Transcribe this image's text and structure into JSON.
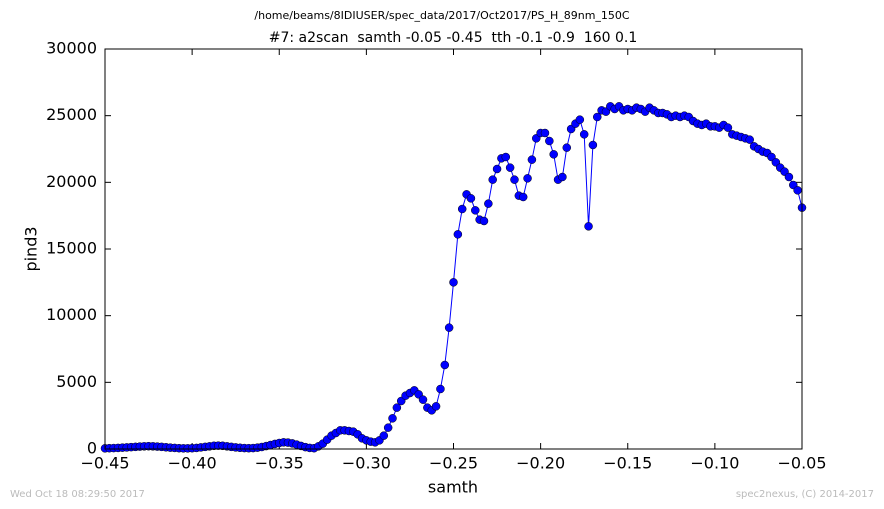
{
  "chart_data": {
    "type": "line",
    "suptitle": "/home/beams/8IDIUSER/spec_data/2017/Oct2017/PS_H_89nm_150C",
    "title": "#7: a2scan  samth -0.05 -0.45  tth -0.1 -0.9  160 0.1",
    "xlabel": "samth",
    "ylabel": "pind3",
    "timestamp": "Wed Oct 18 08:29:50 2017",
    "credit": "spec2nexus, (C) 2014-2017",
    "xlim": [
      -0.45,
      -0.05
    ],
    "xticks": [
      {
        "value": -0.45,
        "label": "−0.45"
      },
      {
        "value": -0.4,
        "label": "−0.40"
      },
      {
        "value": -0.35,
        "label": "−0.35"
      },
      {
        "value": -0.3,
        "label": "−0.30"
      },
      {
        "value": -0.25,
        "label": "−0.25"
      },
      {
        "value": -0.2,
        "label": "−0.20"
      },
      {
        "value": -0.15,
        "label": "−0.15"
      },
      {
        "value": -0.1,
        "label": "−0.10"
      },
      {
        "value": -0.05,
        "label": "−0.05"
      }
    ],
    "ylim": [
      0,
      30000
    ],
    "yticks": [
      0,
      5000,
      10000,
      15000,
      20000,
      25000,
      30000
    ],
    "grid": false,
    "x": [
      -0.45,
      -0.4475,
      -0.445,
      -0.4425,
      -0.44,
      -0.4375,
      -0.435,
      -0.4325,
      -0.43,
      -0.4275,
      -0.425,
      -0.4225,
      -0.42,
      -0.4175,
      -0.415,
      -0.4125,
      -0.41,
      -0.4075,
      -0.405,
      -0.4025,
      -0.4,
      -0.3975,
      -0.395,
      -0.3925,
      -0.39,
      -0.3875,
      -0.385,
      -0.3825,
      -0.38,
      -0.3775,
      -0.375,
      -0.3725,
      -0.37,
      -0.3675,
      -0.365,
      -0.3625,
      -0.36,
      -0.3575,
      -0.355,
      -0.3525,
      -0.35,
      -0.3475,
      -0.345,
      -0.3425,
      -0.34,
      -0.3375,
      -0.335,
      -0.3325,
      -0.33,
      -0.3275,
      -0.325,
      -0.3225,
      -0.32,
      -0.3175,
      -0.315,
      -0.3125,
      -0.31,
      -0.3075,
      -0.305,
      -0.3025,
      -0.3,
      -0.2975,
      -0.295,
      -0.2925,
      -0.29,
      -0.2875,
      -0.285,
      -0.2825,
      -0.28,
      -0.2775,
      -0.275,
      -0.2725,
      -0.27,
      -0.2675,
      -0.265,
      -0.2625,
      -0.26,
      -0.2575,
      -0.255,
      -0.2525,
      -0.25,
      -0.2475,
      -0.245,
      -0.2425,
      -0.24,
      -0.2375,
      -0.235,
      -0.2325,
      -0.23,
      -0.2275,
      -0.225,
      -0.2225,
      -0.22,
      -0.2175,
      -0.215,
      -0.2125,
      -0.21,
      -0.2075,
      -0.205,
      -0.2025,
      -0.2,
      -0.1975,
      -0.195,
      -0.1925,
      -0.19,
      -0.1875,
      -0.185,
      -0.1825,
      -0.18,
      -0.1775,
      -0.175,
      -0.1725,
      -0.17,
      -0.1675,
      -0.165,
      -0.1625,
      -0.16,
      -0.1575,
      -0.155,
      -0.1525,
      -0.15,
      -0.1475,
      -0.145,
      -0.1425,
      -0.14,
      -0.1375,
      -0.135,
      -0.1325,
      -0.13,
      -0.1275,
      -0.125,
      -0.1225,
      -0.12,
      -0.1175,
      -0.115,
      -0.1125,
      -0.11,
      -0.1075,
      -0.105,
      -0.1025,
      -0.1,
      -0.0975,
      -0.095,
      -0.0925,
      -0.09,
      -0.0875,
      -0.085,
      -0.0825,
      -0.08,
      -0.0775,
      -0.075,
      -0.0725,
      -0.07,
      -0.0675,
      -0.065,
      -0.0625,
      -0.06,
      -0.0575,
      -0.055,
      -0.0525,
      -0.05
    ],
    "series": [
      {
        "color": "#0000ff",
        "values": [
          50,
          60,
          70,
          80,
          100,
          120,
          140,
          160,
          180,
          200,
          210,
          200,
          180,
          160,
          130,
          100,
          80,
          60,
          50,
          50,
          60,
          80,
          120,
          160,
          200,
          240,
          250,
          240,
          200,
          160,
          120,
          90,
          70,
          60,
          70,
          100,
          150,
          220,
          300,
          380,
          450,
          500,
          480,
          420,
          330,
          230,
          140,
          80,
          60,
          200,
          400,
          700,
          1000,
          1200,
          1400,
          1400,
          1350,
          1300,
          1100,
          800,
          650,
          550,
          500,
          650,
          1000,
          1600,
          2300,
          3100,
          3600,
          4000,
          4200,
          4400,
          4100,
          3700,
          3100,
          2900,
          3200,
          4500,
          6300,
          9100,
          12500,
          16100,
          18000,
          19100,
          18800,
          17900,
          17200,
          17100,
          18400,
          20200,
          21000,
          21800,
          21900,
          21100,
          20200,
          19000,
          18900,
          20300,
          21700,
          23300,
          23700,
          23700,
          23100,
          22100,
          20200,
          20400,
          22600,
          24000,
          24400,
          24700,
          23600,
          16700,
          22800,
          24900,
          25400,
          25300,
          25700,
          25500,
          25700,
          25400,
          25500,
          25400,
          25600,
          25500,
          25300,
          25600,
          25400,
          25200,
          25200,
          25100,
          24900,
          25000,
          24900,
          25000,
          24900,
          24600,
          24400,
          24300,
          24400,
          24200,
          24200,
          24100,
          24300,
          24100,
          23600,
          23500,
          23400,
          23300,
          23200,
          22700,
          22500,
          22300,
          22200,
          21900,
          21500,
          21100,
          20800,
          20400,
          19800,
          19400,
          18100
        ]
      }
    ]
  }
}
